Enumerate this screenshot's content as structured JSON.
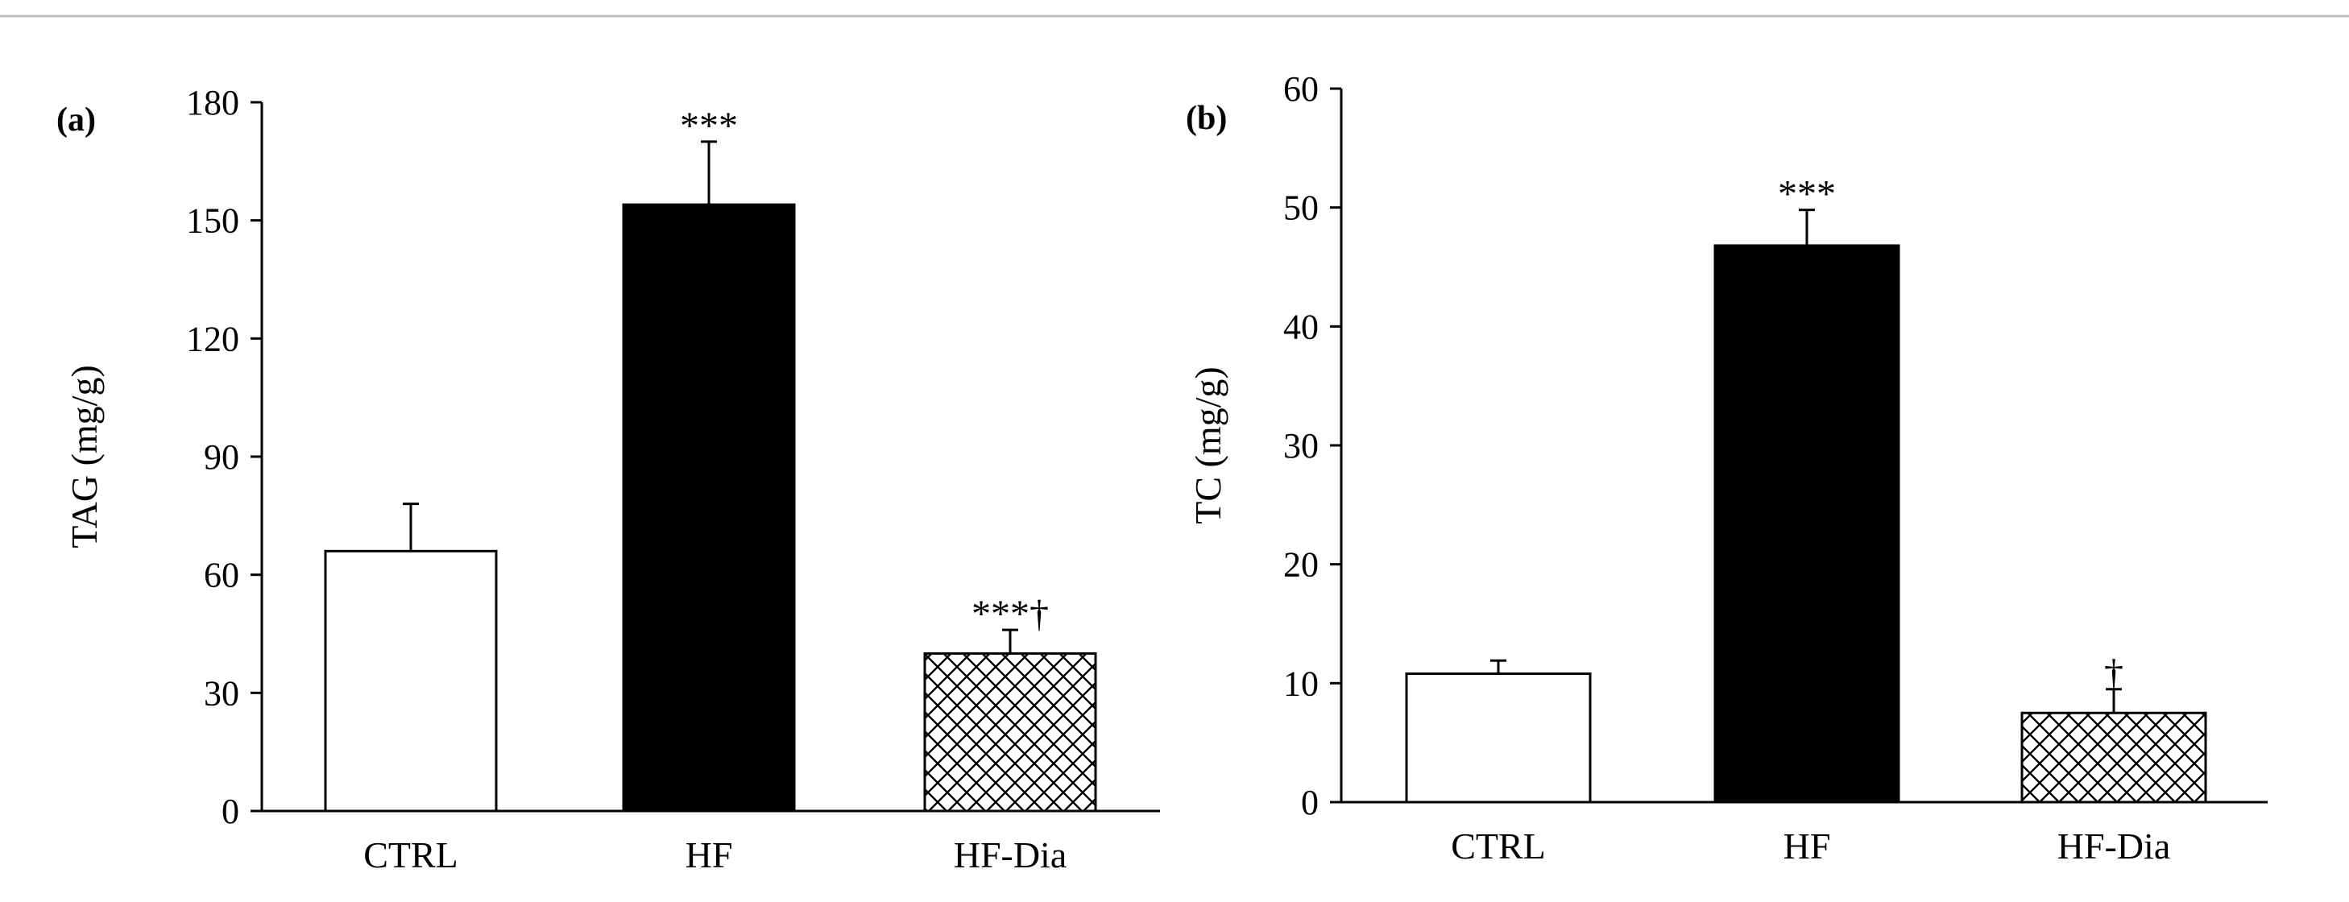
{
  "colors": {
    "background": "#ffffff",
    "top_rule": "#bdbdbd",
    "axis": "#000000",
    "bar_ctrl": "#ffffff",
    "bar_hf": "#000000",
    "bar_hf_dia_pattern": "crosshatch"
  },
  "chart_data": [
    {
      "type": "bar",
      "panel_label": "(a)",
      "categories": [
        "CTRL",
        "HF",
        "HF-Dia"
      ],
      "values": [
        66,
        154,
        40
      ],
      "error": [
        12,
        16,
        6
      ],
      "significance": [
        "",
        "***",
        "***†"
      ],
      "ylabel": "TAG (mg/g)",
      "xlabel": "",
      "ylim": [
        0,
        180
      ],
      "yticks": [
        "0",
        "30",
        "60",
        "90",
        "120",
        "150",
        "180"
      ],
      "grid": false,
      "legend": "none"
    },
    {
      "type": "bar",
      "panel_label": "(b)",
      "categories": [
        "CTRL",
        "HF",
        "HF-Dia"
      ],
      "values": [
        10.8,
        46.8,
        7.5
      ],
      "error": [
        1.1,
        3.0,
        2.0
      ],
      "significance": [
        "",
        "***",
        "†"
      ],
      "ylabel": "TC (mg/g)",
      "xlabel": "",
      "ylim": [
        0,
        60
      ],
      "yticks": [
        "0",
        "10",
        "20",
        "30",
        "40",
        "50",
        "60"
      ],
      "grid": false,
      "legend": "none"
    }
  ]
}
